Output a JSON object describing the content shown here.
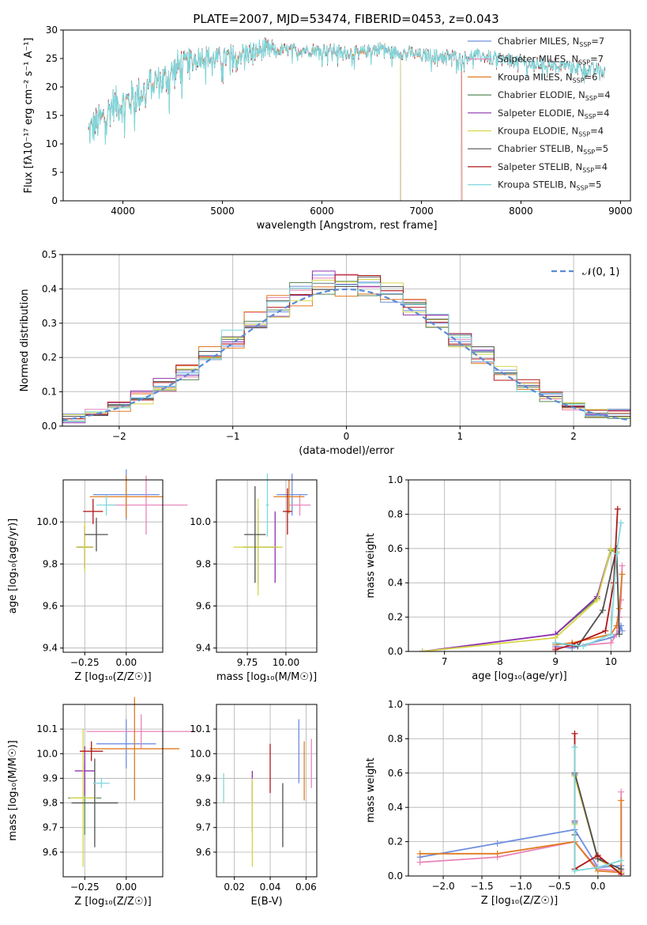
{
  "figure": {
    "title": "PLATE=2007, MJD=53474, FIBERID=0453, z=0.043"
  },
  "colors": {
    "Chabrier MILES": "#6f8fe0",
    "Salpeter MILES": "#e884b8",
    "Kroupa MILES": "#e07b22",
    "Chabrier ELODIE": "#5a8a5a",
    "Salpeter ELODIE": "#8e30b0",
    "Kroupa ELODIE": "#d6d648",
    "Chabrier STELIB": "#505050",
    "Salpeter STELIB": "#b01616",
    "Kroupa STELIB": "#7fd8dc",
    "gaussian": "#5b8bd6"
  },
  "chart_data": [
    {
      "id": "spectrum",
      "type": "line",
      "title": "PLATE=2007, MJD=53474, FIBERID=0453, z=0.043",
      "xlabel": "wavelength [Angstrom, rest frame]",
      "ylabel": "Flux [fλ10⁻¹⁷ erg cm⁻² s⁻¹ A⁻¹]",
      "xlim": [
        3400,
        9100
      ],
      "ylim": [
        0,
        30
      ],
      "xticks": [
        4000,
        5000,
        6000,
        7000,
        8000,
        9000
      ],
      "yticks": [
        0,
        5,
        10,
        15,
        20,
        25,
        30
      ],
      "grid": false,
      "legend_position": "top-right",
      "x": [
        3650,
        3700,
        3800,
        3900,
        4000,
        4100,
        4200,
        4300,
        4400,
        4500,
        4600,
        4700,
        4800,
        4900,
        5000,
        5100,
        5200,
        5300,
        5400,
        5500,
        5600,
        5700,
        5800,
        5900,
        6000,
        6100,
        6200,
        6300,
        6400,
        6500,
        6600,
        6700,
        6800,
        6900,
        7000,
        7100,
        7200,
        7300,
        7400,
        7500,
        7600,
        7700,
        7800,
        7900,
        8000,
        8100,
        8200,
        8300,
        8400,
        8500,
        8600,
        8700,
        8800
      ],
      "y": [
        12,
        13,
        14.5,
        17,
        17,
        18,
        19,
        21,
        21,
        22.5,
        24,
        25,
        25.5,
        25,
        25,
        25.5,
        26,
        26,
        26.5,
        26.5,
        26.5,
        26.5,
        26.5,
        26.5,
        26.5,
        26.5,
        26,
        26,
        26,
        26.5,
        27,
        26,
        26,
        26,
        25.5,
        25.5,
        25.5,
        25.5,
        25,
        25.5,
        25.5,
        25,
        25,
        24.5,
        24.5,
        24,
        24,
        24,
        24,
        23.5,
        23.5,
        23,
        23
      ],
      "series": [
        {
          "name": "Chabrier MILES, N_SSP=7",
          "label_main": "Chabrier MILES, N",
          "label_sub": "SSP",
          "label_tail": "=7"
        },
        {
          "name": "Salpeter MILES, N_SSP=7",
          "label_main": "Salpeter MILES, N",
          "label_sub": "SSP",
          "label_tail": "=7"
        },
        {
          "name": "Kroupa MILES, N_SSP=6",
          "label_main": "Kroupa MILES, N",
          "label_sub": "SSP",
          "label_tail": "=6"
        },
        {
          "name": "Chabrier ELODIE, N_SSP=4",
          "label_main": "Chabrier ELODIE, N",
          "label_sub": "SSP",
          "label_tail": "=4"
        },
        {
          "name": "Salpeter ELODIE, N_SSP=4",
          "label_main": "Salpeter ELODIE, N",
          "label_sub": "SSP",
          "label_tail": "=4"
        },
        {
          "name": "Kroupa ELODIE, N_SSP=4",
          "label_main": "Kroupa ELODIE, N",
          "label_sub": "SSP",
          "label_tail": "=4"
        },
        {
          "name": "Chabrier STELIB, N_SSP=5",
          "label_main": "Chabrier STELIB, N",
          "label_sub": "SSP",
          "label_tail": "=5"
        },
        {
          "name": "Salpeter STELIB, N_SSP=4",
          "label_main": "Salpeter STELIB, N",
          "label_sub": "SSP",
          "label_tail": "=4"
        },
        {
          "name": "Kroupa STELIB, N_SSP=5",
          "label_main": "Kroupa STELIB, N",
          "label_sub": "SSP",
          "label_tail": "=5"
        }
      ]
    },
    {
      "id": "residuals",
      "type": "line",
      "xlabel": "(data-model)/error",
      "ylabel": "Normed distribution",
      "xlim": [
        -2.5,
        2.5
      ],
      "ylim": [
        0,
        0.5
      ],
      "xticks": [
        -2,
        -1,
        0,
        1,
        2
      ],
      "yticks": [
        0.0,
        0.1,
        0.2,
        0.3,
        0.4,
        0.5
      ],
      "grid": true,
      "legend_position": "top-right",
      "legend": [
        "𝒩(0, 1)"
      ]
    },
    {
      "id": "age_vs_Z",
      "type": "scatter",
      "xlabel": "Z [log₁₀(Z/Z☉)]",
      "ylabel": "age  [log₁₀(age/yr)]",
      "xlim": [
        -0.38,
        0.22
      ],
      "ylim": [
        9.38,
        10.2
      ],
      "xticks": [
        -0.25,
        0.0
      ],
      "xtick_labels": [
        "−0.25",
        "0.00"
      ],
      "yticks": [
        9.4,
        9.6,
        9.8,
        10.0
      ],
      "grid": true,
      "points": [
        {
          "series": "Chabrier MILES",
          "x": 0.0,
          "y": 10.13,
          "xerr": 0.2,
          "yerr": 0.12
        },
        {
          "series": "Salpeter MILES",
          "x": 0.12,
          "y": 10.08,
          "xerr": 0.25,
          "yerr": 0.14
        },
        {
          "series": "Kroupa MILES",
          "x": 0.0,
          "y": 10.12,
          "xerr": 0.22,
          "yerr": 0.1
        },
        {
          "series": "Chabrier ELODIE",
          "x": -0.25,
          "y": 9.88,
          "xerr": 0.05,
          "yerr": 0.1
        },
        {
          "series": "Salpeter ELODIE",
          "x": -0.25,
          "y": 9.88,
          "xerr": 0.05,
          "yerr": 0.1
        },
        {
          "series": "Kroupa ELODIE",
          "x": -0.25,
          "y": 9.88,
          "xerr": 0.05,
          "yerr": 0.12
        },
        {
          "series": "Chabrier STELIB",
          "x": -0.18,
          "y": 9.94,
          "xerr": 0.07,
          "yerr": 0.08
        },
        {
          "series": "Salpeter STELIB",
          "x": -0.2,
          "y": 10.05,
          "xerr": 0.06,
          "yerr": 0.06
        },
        {
          "series": "Kroupa STELIB",
          "x": -0.12,
          "y": 10.08,
          "xerr": 0.06,
          "yerr": 0.05
        }
      ]
    },
    {
      "id": "age_vs_mass",
      "type": "scatter",
      "xlabel": "mass [log₁₀(M/M☉)]",
      "ylabel": "",
      "xlim": [
        9.55,
        10.2
      ],
      "ylim": [
        9.38,
        10.2
      ],
      "xticks": [
        9.75,
        10.0
      ],
      "xtick_labels": [
        "9.75",
        "10.00"
      ],
      "yticks": [
        9.4,
        9.6,
        9.8,
        10.0
      ],
      "grid": true,
      "points": [
        {
          "series": "Chabrier MILES",
          "x": 10.04,
          "y": 10.13,
          "xerr": 0.1,
          "yerr": 0.1
        },
        {
          "series": "Salpeter MILES",
          "x": 10.09,
          "y": 10.08,
          "xerr": 0.07,
          "yerr": 0.05
        },
        {
          "series": "Kroupa MILES",
          "x": 10.02,
          "y": 10.12,
          "xerr": 0.1,
          "yerr": 0.08
        },
        {
          "series": "Chabrier ELODIE",
          "x": 9.82,
          "y": 9.88,
          "xerr": 0.1,
          "yerr": 0.18
        },
        {
          "series": "Salpeter ELODIE",
          "x": 9.93,
          "y": 9.88,
          "xerr": 0.02,
          "yerr": 0.17
        },
        {
          "series": "Kroupa ELODIE",
          "x": 9.82,
          "y": 9.88,
          "xerr": 0.16,
          "yerr": 0.23
        },
        {
          "series": "Chabrier STELIB",
          "x": 9.8,
          "y": 9.94,
          "xerr": 0.07,
          "yerr": 0.23
        },
        {
          "series": "Salpeter STELIB",
          "x": 10.01,
          "y": 10.05,
          "xerr": 0.03,
          "yerr": 0.11
        },
        {
          "series": "Kroupa STELIB",
          "x": 9.88,
          "y": 10.08,
          "xerr": 0.01,
          "yerr": 0.15
        }
      ]
    },
    {
      "id": "massweight_vs_age",
      "type": "line",
      "xlabel": "age  [log₁₀(age/yr)]",
      "ylabel": "mass weight",
      "xlim": [
        6.35,
        10.35
      ],
      "ylim": [
        0,
        1.0
      ],
      "xticks": [
        7,
        8,
        9,
        10
      ],
      "yticks": [
        0.0,
        0.2,
        0.4,
        0.6,
        0.8,
        1.0
      ],
      "grid": true,
      "series": [
        {
          "name": "Chabrier MILES",
          "x": [
            9.0,
            9.3,
            10.0,
            10.1,
            10.15,
            10.18,
            10.2
          ],
          "y": [
            0.03,
            0.02,
            0.08,
            0.1,
            0.12,
            0.15,
            0.12
          ]
        },
        {
          "name": "Salpeter MILES",
          "x": [
            9.0,
            9.3,
            10.0,
            10.1,
            10.15,
            10.18,
            10.2
          ],
          "y": [
            0.02,
            0.03,
            0.05,
            0.1,
            0.2,
            0.3,
            0.5
          ]
        },
        {
          "name": "Kroupa MILES",
          "x": [
            9.0,
            9.3,
            10.0,
            10.1,
            10.15,
            10.2
          ],
          "y": [
            0.04,
            0.05,
            0.1,
            0.15,
            0.25,
            0.45
          ]
        },
        {
          "name": "Chabrier ELODIE",
          "x": [
            9.0,
            9.75,
            10.0,
            10.1
          ],
          "y": [
            0.1,
            0.31,
            0.59,
            0.58
          ]
        },
        {
          "name": "Salpeter ELODIE",
          "x": [
            6.6,
            9.0,
            9.75,
            10.0,
            10.1
          ],
          "y": [
            0.0,
            0.1,
            0.32,
            0.6,
            0.58
          ]
        },
        {
          "name": "Kroupa ELODIE",
          "x": [
            6.6,
            9.0,
            9.75,
            10.0,
            10.1
          ],
          "y": [
            0.0,
            0.08,
            0.3,
            0.6,
            0.58
          ]
        },
        {
          "name": "Chabrier STELIB",
          "x": [
            9.0,
            9.4,
            9.85,
            10.1,
            10.15
          ],
          "y": [
            0.05,
            0.03,
            0.24,
            0.6,
            0.1
          ]
        },
        {
          "name": "Salpeter STELIB",
          "x": [
            9.0,
            9.3,
            9.9,
            10.05,
            10.12
          ],
          "y": [
            0.01,
            0.04,
            0.12,
            0.4,
            0.83
          ]
        },
        {
          "name": "Kroupa STELIB",
          "x": [
            9.0,
            9.5,
            10.0,
            10.1,
            10.18
          ],
          "y": [
            0.05,
            0.03,
            0.1,
            0.57,
            0.75
          ]
        }
      ]
    },
    {
      "id": "mass_vs_Z",
      "type": "scatter",
      "xlabel": "Z [log₁₀(Z/Z☉)]",
      "ylabel": "mass [log₁₀(M/M☉)]",
      "xlim": [
        -0.38,
        0.22
      ],
      "ylim": [
        9.5,
        10.2
      ],
      "xticks": [
        -0.25,
        0.0
      ],
      "xtick_labels": [
        "−0.25",
        "0.00"
      ],
      "yticks": [
        9.6,
        9.7,
        9.8,
        9.9,
        10.0,
        10.1
      ],
      "grid": true,
      "points": [
        {
          "series": "Chabrier MILES",
          "x": 0.0,
          "y": 10.04,
          "xerr": 0.18,
          "yerr": 0.1
        },
        {
          "series": "Salpeter MILES",
          "x": 0.09,
          "y": 10.09,
          "xerr": 0.33,
          "yerr": 0.07
        },
        {
          "series": "Kroupa MILES",
          "x": 0.05,
          "y": 10.02,
          "xerr": 0.27,
          "yerr": 0.21
        },
        {
          "series": "Chabrier ELODIE",
          "x": -0.25,
          "y": 9.82,
          "xerr": 0.1,
          "yerr": 0.15
        },
        {
          "series": "Salpeter ELODIE",
          "x": -0.25,
          "y": 9.93,
          "xerr": 0.06,
          "yerr": 0.1
        },
        {
          "series": "Kroupa ELODIE",
          "x": -0.26,
          "y": 9.82,
          "xerr": 0.08,
          "yerr": 0.28
        },
        {
          "series": "Chabrier STELIB",
          "x": -0.19,
          "y": 9.8,
          "xerr": 0.14,
          "yerr": 0.18
        },
        {
          "series": "Salpeter STELIB",
          "x": -0.21,
          "y": 10.01,
          "xerr": 0.07,
          "yerr": 0.04
        },
        {
          "series": "Kroupa STELIB",
          "x": -0.15,
          "y": 9.88,
          "xerr": 0.05,
          "yerr": 0.02
        }
      ]
    },
    {
      "id": "mass_vs_EBV",
      "type": "scatter",
      "xlabel": "E(B-V)",
      "ylabel": "",
      "xlim": [
        0.01,
        0.066
      ],
      "ylim": [
        9.5,
        10.2
      ],
      "xticks": [
        0.02,
        0.04,
        0.06
      ],
      "xtick_labels": [
        "0.02",
        "0.04",
        "0.06"
      ],
      "yticks": [
        9.6,
        9.7,
        9.8,
        9.9,
        10.0,
        10.1
      ],
      "grid": true,
      "points": [
        {
          "series": "Chabrier MILES",
          "x": 0.056,
          "y": 10.01,
          "yerr": 0.13
        },
        {
          "series": "Salpeter MILES",
          "x": 0.063,
          "y": 9.96,
          "yerr": 0.1
        },
        {
          "series": "Kroupa MILES",
          "x": 0.059,
          "y": 9.93,
          "yerr": 0.12
        },
        {
          "series": "Chabrier ELODIE",
          "x": 0.03,
          "y": 9.78,
          "yerr": 0.1
        },
        {
          "series": "Salpeter ELODIE",
          "x": 0.03,
          "y": 9.87,
          "yerr": 0.06
        },
        {
          "series": "Kroupa ELODIE",
          "x": 0.03,
          "y": 9.72,
          "yerr": 0.18
        },
        {
          "series": "Chabrier STELIB",
          "x": 0.047,
          "y": 9.75,
          "yerr": 0.13
        },
        {
          "series": "Salpeter STELIB",
          "x": 0.04,
          "y": 9.94,
          "yerr": 0.1
        },
        {
          "series": "Kroupa STELIB",
          "x": 0.014,
          "y": 9.86,
          "yerr": 0.06
        }
      ]
    },
    {
      "id": "massweight_vs_Z",
      "type": "line",
      "xlabel": "Z [log₁₀(Z/Z☉)]",
      "ylabel": "mass weight",
      "xlim": [
        -2.45,
        0.42
      ],
      "ylim": [
        0,
        1.0
      ],
      "xticks": [
        -2.0,
        -1.5,
        -1.0,
        -0.5,
        0.0
      ],
      "xtick_labels": [
        "−2.0",
        "−1.5",
        "−1.0",
        "−0.5",
        "0.0"
      ],
      "yticks": [
        0.0,
        0.2,
        0.4,
        0.6,
        0.8,
        1.0
      ],
      "grid": true,
      "series": [
        {
          "name": "Chabrier MILES",
          "x": [
            -2.3,
            -1.3,
            -0.3,
            0.0,
            0.3
          ],
          "y": [
            0.11,
            0.19,
            0.27,
            0.05,
            0.06
          ]
        },
        {
          "name": "Salpeter MILES",
          "x": [
            -2.3,
            -1.3,
            -0.3,
            0.0,
            0.3,
            0.3
          ],
          "y": [
            0.08,
            0.11,
            0.2,
            0.04,
            0.03,
            0.49
          ]
        },
        {
          "name": "Kroupa MILES",
          "x": [
            -2.3,
            -1.3,
            -0.3,
            0.0,
            0.3,
            0.3
          ],
          "y": [
            0.13,
            0.13,
            0.2,
            0.03,
            0.02,
            0.44
          ]
        },
        {
          "name": "Chabrier ELODIE",
          "x": [
            -0.3,
            -0.3,
            0.0,
            0.3
          ],
          "y": [
            0.31,
            0.59,
            0.1,
            0.02
          ]
        },
        {
          "name": "Salpeter ELODIE",
          "x": [
            -0.3,
            -0.3,
            0.0,
            0.3
          ],
          "y": [
            0.32,
            0.6,
            0.1,
            0.02
          ]
        },
        {
          "name": "Kroupa ELODIE",
          "x": [
            -0.3,
            -0.3,
            0.0,
            0.3
          ],
          "y": [
            0.3,
            0.58,
            0.1,
            0.02
          ]
        },
        {
          "name": "Chabrier STELIB",
          "x": [
            -0.3,
            -0.3,
            0.0,
            0.3
          ],
          "y": [
            0.24,
            0.6,
            0.1,
            0.04
          ]
        },
        {
          "name": "Salpeter STELIB",
          "x": [
            -0.3,
            -0.3,
            0.0,
            0.3
          ],
          "y": [
            0.83,
            0.04,
            0.12,
            0.01
          ]
        },
        {
          "name": "Kroupa STELIB",
          "x": [
            -0.3,
            -0.3,
            0.0,
            0.3
          ],
          "y": [
            0.75,
            0.03,
            0.05,
            0.09
          ]
        }
      ]
    }
  ]
}
